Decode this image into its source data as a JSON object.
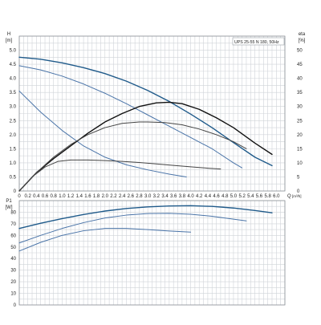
{
  "chart_data": [
    {
      "type": "line",
      "title": "",
      "legend_text": "UPS 25-55 N 180, 50Hz",
      "legend_position": "top-right",
      "grid": true,
      "xlabel": "Q",
      "xunit": "[m³/h]",
      "ylabel": "H",
      "yunit": "[m]",
      "y2label": "eta",
      "y2unit": "[%]",
      "xlim": [
        0,
        6.2
      ],
      "ylim": [
        0,
        5.5
      ],
      "y2lim": [
        0,
        55
      ],
      "x_ticks": [
        "0",
        "0.2",
        "0.4",
        "0.6",
        "0.8",
        "1.0",
        "1.2",
        "1.4",
        "1.6",
        "1.8",
        "2.0",
        "2.2",
        "2.4",
        "2.6",
        "2.8",
        "3.0",
        "3.2",
        "3.4",
        "3.6",
        "3.8",
        "4.0",
        "4.2",
        "4.4",
        "4.6",
        "4.8",
        "5.0",
        "5.2",
        "5.4",
        "5.6",
        "5.8",
        "6.0"
      ],
      "y_ticks": [
        "0",
        "0.5",
        "1.0",
        "1.5",
        "2.0",
        "2.5",
        "3.0",
        "3.5",
        "4.0",
        "4.5",
        "5.0"
      ],
      "y2_ticks": [
        "0",
        "5",
        "10",
        "15",
        "20",
        "25",
        "30",
        "35",
        "40",
        "45",
        "50"
      ],
      "series": [
        {
          "axis": "H",
          "color": "#1f5a8a",
          "width": 1.4,
          "x": [
            0,
            0.5,
            1.0,
            1.5,
            2.0,
            2.5,
            3.0,
            3.5,
            4.0,
            4.5,
            5.0,
            5.5,
            5.9
          ],
          "y": [
            4.75,
            4.68,
            4.55,
            4.38,
            4.17,
            3.9,
            3.57,
            3.18,
            2.73,
            2.25,
            1.72,
            1.2,
            0.9
          ]
        },
        {
          "axis": "H",
          "color": "#4a74a8",
          "width": 1.0,
          "x": [
            0,
            0.5,
            1.0,
            1.5,
            2.0,
            2.5,
            3.0,
            3.5,
            4.0,
            4.5,
            5.0,
            5.2
          ],
          "y": [
            4.45,
            4.3,
            4.08,
            3.8,
            3.47,
            3.1,
            2.7,
            2.3,
            1.9,
            1.5,
            1.0,
            0.82
          ]
        },
        {
          "axis": "H",
          "color": "#4a74a8",
          "width": 1.0,
          "x": [
            0,
            0.5,
            1.0,
            1.5,
            2.0,
            2.5,
            3.0,
            3.5,
            3.9
          ],
          "y": [
            3.55,
            2.8,
            2.15,
            1.6,
            1.2,
            0.93,
            0.75,
            0.6,
            0.5
          ]
        },
        {
          "axis": "eta",
          "color": "#111111",
          "width": 1.4,
          "x": [
            0,
            0.4,
            0.8,
            1.2,
            1.6,
            2.0,
            2.4,
            2.8,
            3.2,
            3.5,
            3.8,
            4.2,
            4.6,
            5.0,
            5.5,
            5.9
          ],
          "y": [
            0,
            6.5,
            11.5,
            16,
            20.5,
            24.5,
            27.5,
            30,
            31.3,
            31.5,
            31,
            29,
            26,
            22.5,
            17,
            13
          ]
        },
        {
          "axis": "eta",
          "color": "#444444",
          "width": 1.0,
          "x": [
            0,
            0.4,
            0.8,
            1.2,
            1.6,
            2.0,
            2.4,
            2.8,
            3.0,
            3.4,
            3.8,
            4.2,
            4.6,
            5.0,
            5.3
          ],
          "y": [
            0,
            6.5,
            12,
            16.5,
            20,
            22.5,
            24,
            24.5,
            24.5,
            24.3,
            23.5,
            22,
            20,
            17.5,
            15
          ]
        },
        {
          "axis": "eta",
          "color": "#444444",
          "width": 1.0,
          "x": [
            0,
            0.3,
            0.6,
            0.9,
            1.2,
            1.6,
            2.0,
            2.4,
            2.8,
            3.2,
            3.6,
            4.0,
            4.4,
            4.7
          ],
          "y": [
            0,
            5,
            8.5,
            10.5,
            11,
            11,
            10.8,
            10.5,
            10.1,
            9.6,
            9.1,
            8.6,
            8.1,
            7.8
          ]
        }
      ]
    },
    {
      "type": "line",
      "title": "",
      "grid": true,
      "ylabel": "P1",
      "yunit": "[W]",
      "xlim": [
        0,
        6.2
      ],
      "ylim": [
        0,
        90
      ],
      "y_ticks": [
        "0",
        "10",
        "20",
        "30",
        "40",
        "50",
        "60",
        "70",
        "80"
      ],
      "series": [
        {
          "color": "#1f5a8a",
          "width": 1.4,
          "x": [
            0,
            0.5,
            1.0,
            1.5,
            2.0,
            2.5,
            3.0,
            3.5,
            4.0,
            4.5,
            5.0,
            5.5,
            5.9
          ],
          "y": [
            66,
            70.5,
            74.5,
            78,
            81,
            83.2,
            84.6,
            85.4,
            85.6,
            85,
            83.6,
            81.5,
            79.5
          ]
        },
        {
          "axis": "P1",
          "color": "#4a74a8",
          "width": 1.0,
          "x": [
            0,
            0.5,
            1.0,
            1.5,
            2.0,
            2.5,
            3.0,
            3.5,
            4.0,
            4.5,
            5.0,
            5.3
          ],
          "y": [
            53.5,
            60,
            66,
            71,
            75,
            77.5,
            78.8,
            79,
            78.2,
            76.5,
            74,
            72.5
          ]
        },
        {
          "axis": "P1",
          "color": "#4a74a8",
          "width": 1.0,
          "x": [
            0,
            0.5,
            1.0,
            1.5,
            2.0,
            2.5,
            3.0,
            3.5,
            4.0
          ],
          "y": [
            46.5,
            54,
            60,
            64,
            66,
            66,
            65,
            63.8,
            62.8
          ]
        }
      ]
    }
  ]
}
